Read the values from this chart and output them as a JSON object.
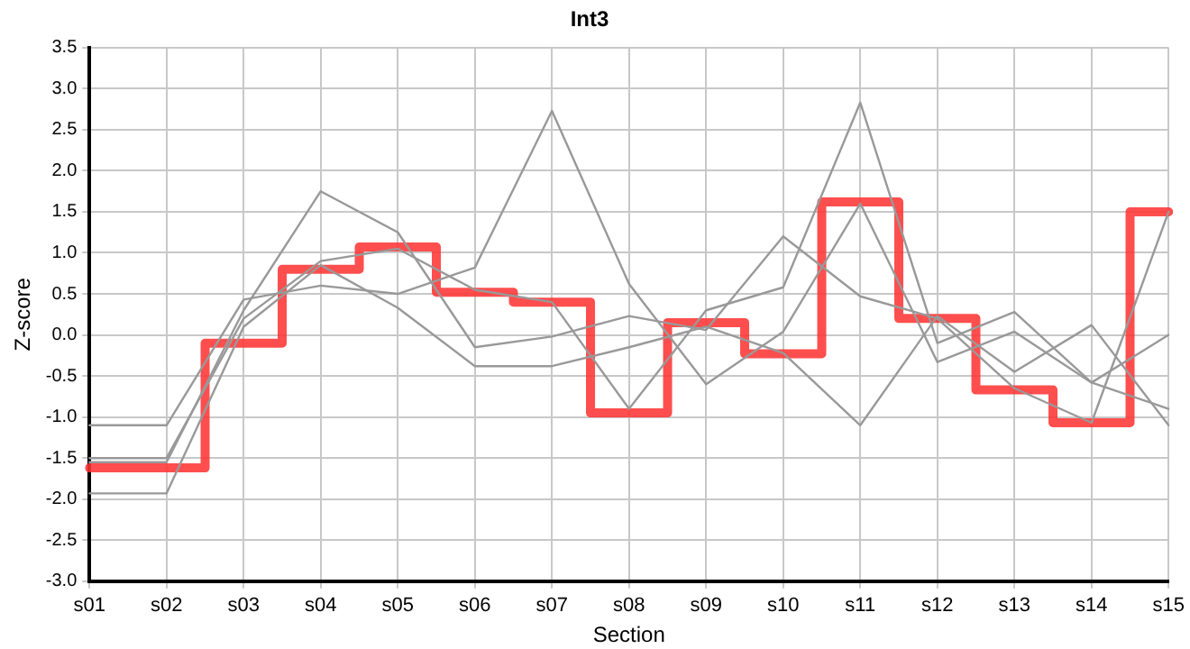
{
  "chart_data": {
    "type": "line",
    "title": "Int3",
    "xlabel": "Section",
    "ylabel": "Z-score",
    "categories": [
      "s01",
      "s02",
      "s03",
      "s04",
      "s05",
      "s06",
      "s07",
      "s08",
      "s09",
      "s10",
      "s11",
      "s12",
      "s13",
      "s14",
      "s15"
    ],
    "series": [
      {
        "color": "#999999",
        "values": [
          -1.1,
          -1.1,
          0.43,
          0.6,
          0.5,
          0.82,
          2.73,
          0.62,
          -0.6,
          0.04,
          1.6,
          -0.33,
          0.04,
          -0.58,
          0.0
        ]
      },
      {
        "color": "#999999",
        "values": [
          -1.55,
          -1.55,
          0.3,
          1.75,
          1.25,
          -0.15,
          -0.02,
          0.23,
          0.06,
          1.2,
          0.47,
          0.2,
          -0.65,
          -1.07,
          1.5
        ]
      },
      {
        "color": "#999999",
        "values": [
          -1.5,
          -1.5,
          0.2,
          0.9,
          1.05,
          0.55,
          0.4,
          -0.9,
          0.3,
          0.58,
          2.83,
          -0.1,
          0.28,
          -0.58,
          -0.9
        ]
      },
      {
        "color": "#999999",
        "values": [
          -1.93,
          -1.93,
          0.1,
          0.85,
          0.33,
          -0.38,
          -0.38,
          -0.15,
          0.1,
          -0.22,
          -1.1,
          0.23,
          -0.45,
          0.12,
          -1.1
        ]
      },
      {
        "type": "step",
        "color": "#ff3333",
        "values": [
          -1.62,
          -1.62,
          -0.1,
          0.8,
          1.07,
          0.52,
          0.4,
          -0.95,
          0.15,
          -0.23,
          1.62,
          0.2,
          -0.67,
          -1.07,
          1.5
        ]
      }
    ],
    "ylim": [
      -3,
      3.5
    ],
    "yticks": [
      {
        "value": -3,
        "label": "-3.0"
      },
      {
        "value": -2.5,
        "label": "-2.5"
      },
      {
        "value": -2,
        "label": "-2.0"
      },
      {
        "value": -1.5,
        "label": "-1.5"
      },
      {
        "value": -1,
        "label": "-1.0"
      },
      {
        "value": -0.5,
        "label": "-0.5"
      },
      {
        "value": 0,
        "label": "0.0"
      },
      {
        "value": 0.5,
        "label": "0.5"
      },
      {
        "value": 1,
        "label": "1.0"
      },
      {
        "value": 1.5,
        "label": "1.5"
      },
      {
        "value": 2,
        "label": "2.0"
      },
      {
        "value": 2.5,
        "label": "2.5"
      },
      {
        "value": 3,
        "label": "3.0"
      },
      {
        "value": 3.5,
        "label": "3.5"
      }
    ],
    "grid": true,
    "legend": false,
    "marker": "none"
  }
}
